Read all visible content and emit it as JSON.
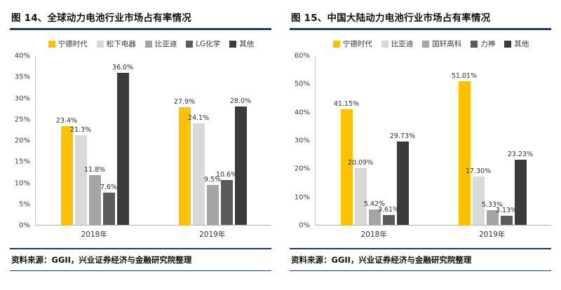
{
  "source_note": {
    "prefix": "资料来源：",
    "text": "GGII，兴业证券经济与金融研究院整理"
  },
  "colors": {
    "rule_navy": "#1f3864",
    "catl_yellow": "#FFC000",
    "gray_light": "#D9D9D9",
    "gray_mid": "#A5A5A5",
    "gray_dark": "#5B5B5B",
    "gray_darkest": "#3B3B3B"
  },
  "chart_data": [
    {
      "type": "bar",
      "title": "图 14、全球动力电池行业市场占有率情况",
      "categories": [
        "2018年",
        "2019年"
      ],
      "series": [
        {
          "name": "宁德时代",
          "color": "#FFC000",
          "values": [
            23.4,
            27.9
          ],
          "labels": [
            "23.4%",
            "27.9%"
          ]
        },
        {
          "name": "松下电器",
          "color": "#D9D9D9",
          "values": [
            21.3,
            24.1
          ],
          "labels": [
            "21.3%",
            "24.1%"
          ]
        },
        {
          "name": "比亚迪",
          "color": "#A5A5A5",
          "values": [
            11.8,
            9.5
          ],
          "labels": [
            "11.8%",
            "9.5%"
          ]
        },
        {
          "name": "LG化学",
          "color": "#5B5B5B",
          "values": [
            7.6,
            10.6
          ],
          "labels": [
            "7.6%",
            "10.6%"
          ]
        },
        {
          "name": "其他",
          "color": "#3B3B3B",
          "values": [
            36.0,
            28.0
          ],
          "labels": [
            "36.0%",
            "28.0%"
          ]
        }
      ],
      "ylim": [
        0,
        40
      ],
      "ystep": 5,
      "ytick_suffix": "%",
      "legend_position": "top",
      "grid": false,
      "source": "资料来源：GGII，兴业证券经济与金融研究院整理"
    },
    {
      "type": "bar",
      "title": "图 15、中国大陆动力电池行业市场占有率情况",
      "categories": [
        "2018年",
        "2019年"
      ],
      "series": [
        {
          "name": "宁德时代",
          "color": "#FFC000",
          "values": [
            41.15,
            51.01
          ],
          "labels": [
            "41.15%",
            "51.01%"
          ]
        },
        {
          "name": "比亚迪",
          "color": "#D9D9D9",
          "values": [
            20.09,
            17.3
          ],
          "labels": [
            "20.09%",
            "17.30%"
          ]
        },
        {
          "name": "国轩高科",
          "color": "#A5A5A5",
          "values": [
            5.42,
            5.33
          ],
          "labels": [
            "5.42%",
            "5.33%"
          ]
        },
        {
          "name": "力神",
          "color": "#5B5B5B",
          "values": [
            3.61,
            3.13
          ],
          "labels": [
            "3.61%",
            "3.13%"
          ]
        },
        {
          "name": "其他",
          "color": "#3B3B3B",
          "values": [
            29.73,
            23.23
          ],
          "labels": [
            "29.73%",
            "23.23%"
          ]
        }
      ],
      "ylim": [
        0,
        60
      ],
      "ystep": 10,
      "ytick_suffix": "%",
      "legend_position": "top",
      "grid": false,
      "source": "资料来源：GGII，兴业证券经济与金融研究院整理"
    }
  ]
}
